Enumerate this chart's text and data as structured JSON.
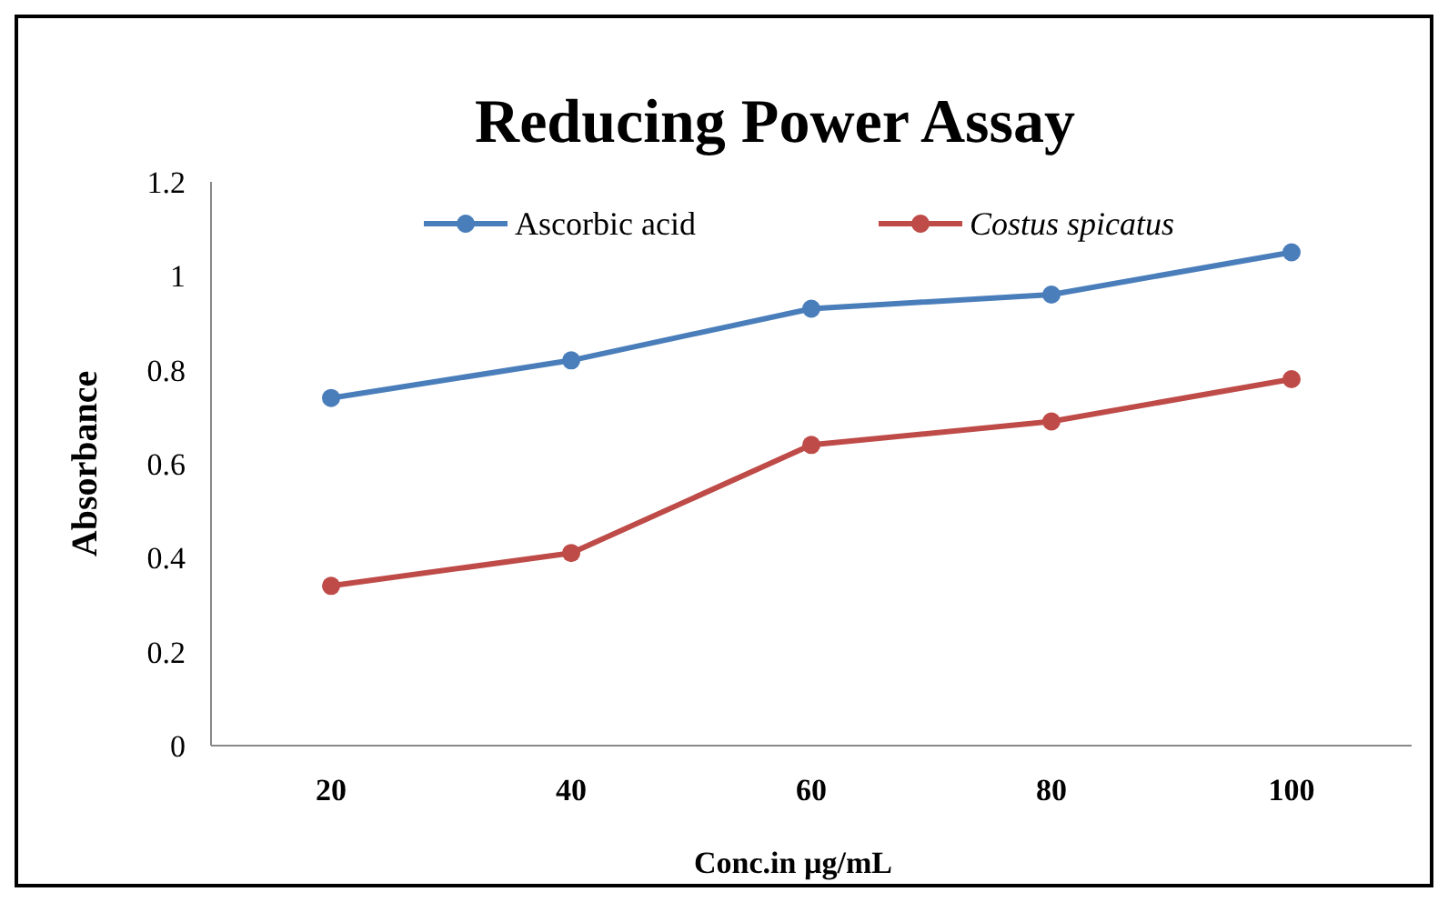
{
  "chart_data": {
    "type": "line",
    "title": "Reducing Power Assay",
    "xlabel": "Conc.in µg/mL",
    "ylabel": "Absorbance",
    "categories": [
      "20",
      "40",
      "60",
      "80",
      "100"
    ],
    "series": [
      {
        "name": "Ascorbic acid",
        "color": "#4a7ebb",
        "values": [
          0.74,
          0.82,
          0.93,
          0.96,
          1.05
        ]
      },
      {
        "name": "Costus spicatus",
        "color": "#be4b48",
        "values": [
          0.34,
          0.41,
          0.64,
          0.69,
          0.78
        ]
      }
    ],
    "ylim": [
      0,
      1.2
    ],
    "yticks": [
      0,
      0.2,
      0.4,
      0.6,
      0.8,
      1,
      1.2
    ],
    "grid": false,
    "legend": "top",
    "marker": "circle",
    "line_style": "solid"
  }
}
